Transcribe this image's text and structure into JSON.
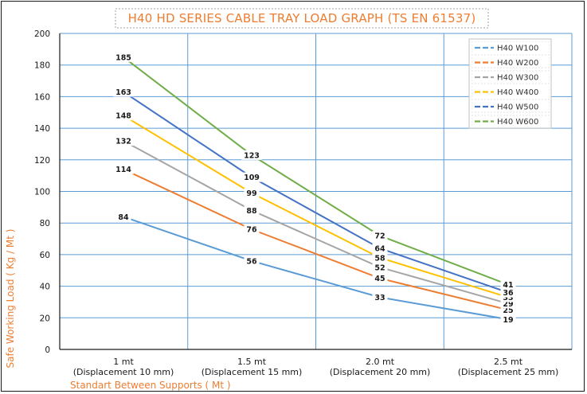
{
  "colors": {
    "title": "#ed7d31",
    "grid": "#5b9bd5",
    "axis": "#1a1a1a"
  },
  "chart_data": {
    "type": "line",
    "title": "H40 HD SERIES CABLE TRAY LOAD GRAPH (TS EN 61537)",
    "xlabel": "Standart Between Supports ( Mt )",
    "ylabel": "Safe Working Load ( Kg / Mt )",
    "ylim": [
      0,
      200
    ],
    "yticks": [
      0,
      20,
      40,
      60,
      80,
      100,
      120,
      140,
      160,
      180,
      200
    ],
    "grid": true,
    "legend_position": "top-right",
    "categories": [
      {
        "main": "1 mt",
        "sub": "(Displacement 10 mm)"
      },
      {
        "main": "1.5 mt",
        "sub": "(Displacement 15 mm)"
      },
      {
        "main": "2.0 mt",
        "sub": "(Displacement 20 mm)"
      },
      {
        "main": "2.5 mt",
        "sub": "(Displacement 25 mm)"
      }
    ],
    "series": [
      {
        "name": "H40 W100",
        "color": "#5b9bd5",
        "values": [
          84,
          56,
          33,
          19
        ]
      },
      {
        "name": "H40 W200",
        "color": "#ed7d31",
        "values": [
          114,
          76,
          45,
          25
        ]
      },
      {
        "name": "H40 W300",
        "color": "#a5a5a5",
        "values": [
          132,
          88,
          52,
          29
        ]
      },
      {
        "name": "H40 W400",
        "color": "#ffc000",
        "values": [
          148,
          99,
          58,
          33
        ]
      },
      {
        "name": "H40 W500",
        "color": "#4472c4",
        "values": [
          163,
          109,
          64,
          36
        ]
      },
      {
        "name": "H40 W600",
        "color": "#70ad47",
        "values": [
          185,
          123,
          72,
          41
        ]
      }
    ]
  }
}
